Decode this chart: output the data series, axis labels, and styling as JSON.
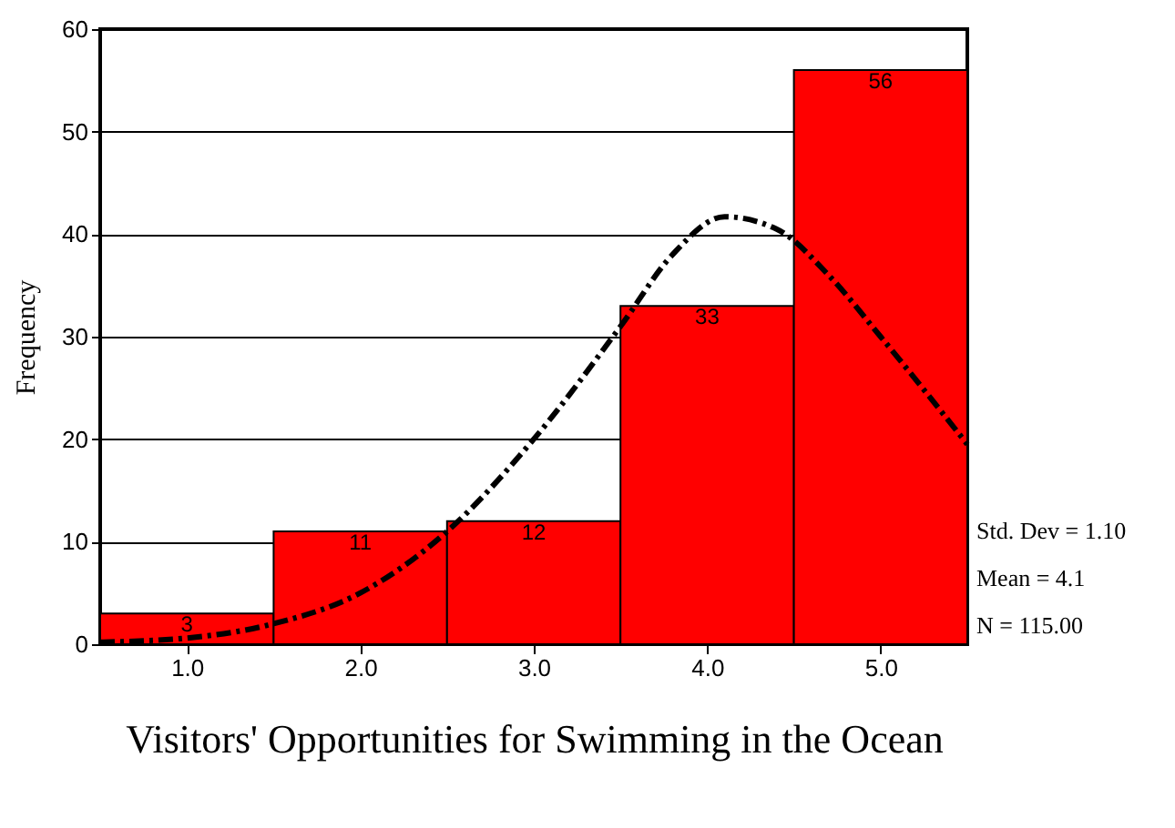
{
  "chart_data": {
    "type": "histogram",
    "xlabel": "Visitors' Opportunities for Swimming in the Ocean",
    "ylabel": "Frequency",
    "bins": [
      0.5,
      1.5,
      2.5,
      3.5,
      4.5,
      5.5
    ],
    "series": [
      {
        "color": "#ff0000",
        "values": [
          3,
          11,
          12,
          33,
          56
        ],
        "value_labels": [
          "3",
          "11",
          "12",
          "33",
          "56"
        ]
      },
      {
        "type": "line",
        "color": "#000000",
        "line_style": "dashed",
        "x": [
          0.5,
          1.0,
          1.5,
          2.0,
          2.5,
          3.0,
          3.5,
          3.8,
          4.1,
          4.4,
          4.7,
          5.0,
          5.5
        ],
        "values": [
          0.2,
          0.6,
          2,
          5,
          11,
          20,
          31,
          38,
          41.7,
          40.5,
          36,
          30,
          19.5
        ]
      }
    ],
    "xlim": [
      0.5,
      5.5
    ],
    "ylim": [
      0,
      60
    ],
    "xticks": [
      {
        "value": 1,
        "label": "1.0"
      },
      {
        "value": 2,
        "label": "2.0"
      },
      {
        "value": 3,
        "label": "3.0"
      },
      {
        "value": 4,
        "label": "4.0"
      },
      {
        "value": 5,
        "label": "5.0"
      }
    ],
    "yticks": [
      0,
      10,
      20,
      30,
      40,
      50,
      60
    ],
    "grid": "y",
    "annotations": [
      "Std. Dev = 1.10",
      "Mean = 4.1",
      "N = 115.00"
    ]
  }
}
